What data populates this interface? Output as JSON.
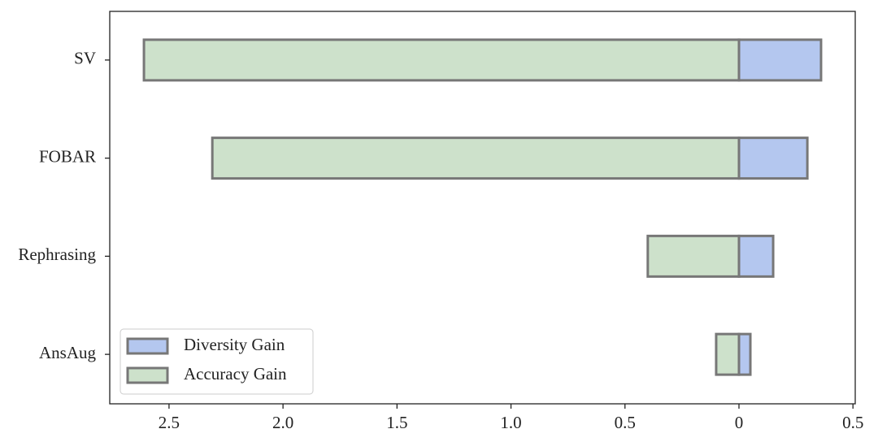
{
  "chart_data": {
    "type": "diverging-bar",
    "categories": [
      "SV",
      "FOBAR",
      "Rephrasing",
      "AnsAug"
    ],
    "series": [
      {
        "name": "Diversity Gain",
        "color": "#b4c7ef",
        "values": [
          0.36,
          0.3,
          0.15,
          0.05
        ]
      },
      {
        "name": "Accuracy Gain",
        "color": "#cde1cb",
        "values": [
          -2.61,
          -2.31,
          -0.4,
          -0.1
        ]
      }
    ],
    "xlim": [
      -2.76,
      0.51
    ],
    "xticks": [
      {
        "value": -2.5,
        "label": "2.5"
      },
      {
        "value": -2.0,
        "label": "2.0"
      },
      {
        "value": -1.5,
        "label": "1.5"
      },
      {
        "value": -1.0,
        "label": "1.0"
      },
      {
        "value": -0.5,
        "label": "0.5"
      },
      0,
      0.5
    ],
    "legend": "lower left"
  }
}
